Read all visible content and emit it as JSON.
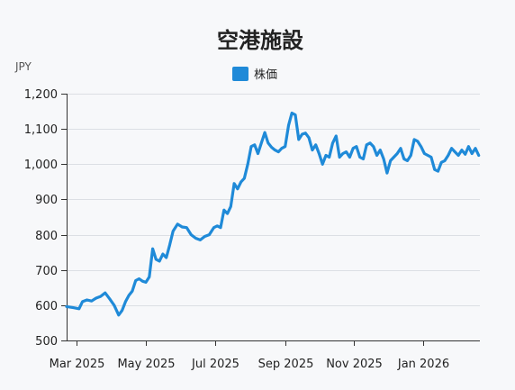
{
  "chart_data": {
    "type": "line",
    "title": "空港施設",
    "y_unit": "JPY",
    "ylim": [
      500,
      1200
    ],
    "y_ticks": [
      "500",
      "600",
      "700",
      "800",
      "900",
      "1,000",
      "1,100",
      "1,200"
    ],
    "x_tick_labels": [
      "Mar 2025",
      "May 2025",
      "Jul 2025",
      "Sep 2025",
      "Nov 2025",
      "Jan 2026"
    ],
    "x_tick_dates": [
      "2025-03-01",
      "2025-05-01",
      "2025-07-01",
      "2025-09-01",
      "2025-11-01",
      "2026-01-01"
    ],
    "x_range": [
      "2025-02-20",
      "2026-02-20"
    ],
    "grid": true,
    "legend_position": "top-center",
    "series": [
      {
        "name": "株価",
        "color": "#1f8ad8",
        "x": [
          "2025-02-20",
          "2025-02-26",
          "2025-03-03",
          "2025-03-06",
          "2025-03-10",
          "2025-03-14",
          "2025-03-18",
          "2025-03-22",
          "2025-03-26",
          "2025-03-30",
          "2025-04-03",
          "2025-04-07",
          "2025-04-10",
          "2025-04-13",
          "2025-04-16",
          "2025-04-19",
          "2025-04-22",
          "2025-04-25",
          "2025-04-28",
          "2025-05-01",
          "2025-05-04",
          "2025-05-07",
          "2025-05-10",
          "2025-05-13",
          "2025-05-16",
          "2025-05-19",
          "2025-05-22",
          "2025-05-25",
          "2025-05-29",
          "2025-06-02",
          "2025-06-06",
          "2025-06-10",
          "2025-06-14",
          "2025-06-18",
          "2025-06-22",
          "2025-06-26",
          "2025-06-30",
          "2025-07-03",
          "2025-07-06",
          "2025-07-09",
          "2025-07-12",
          "2025-07-15",
          "2025-07-18",
          "2025-07-21",
          "2025-07-24",
          "2025-07-27",
          "2025-07-30",
          "2025-08-02",
          "2025-08-05",
          "2025-08-08",
          "2025-08-11",
          "2025-08-14",
          "2025-08-17",
          "2025-08-20",
          "2025-08-23",
          "2025-08-26",
          "2025-08-29",
          "2025-09-01",
          "2025-09-04",
          "2025-09-07",
          "2025-09-10",
          "2025-09-13",
          "2025-09-16",
          "2025-09-19",
          "2025-09-22",
          "2025-09-25",
          "2025-09-28",
          "2025-10-01",
          "2025-10-04",
          "2025-10-07",
          "2025-10-10",
          "2025-10-13",
          "2025-10-16",
          "2025-10-19",
          "2025-10-22",
          "2025-10-25",
          "2025-10-28",
          "2025-10-31",
          "2025-11-03",
          "2025-11-06",
          "2025-11-09",
          "2025-11-12",
          "2025-11-15",
          "2025-11-18",
          "2025-11-21",
          "2025-11-24",
          "2025-11-27",
          "2025-11-30",
          "2025-12-03",
          "2025-12-06",
          "2025-12-09",
          "2025-12-12",
          "2025-12-15",
          "2025-12-18",
          "2025-12-21",
          "2025-12-24",
          "2025-12-27",
          "2025-12-30",
          "2026-01-02",
          "2026-01-05",
          "2026-01-08",
          "2026-01-11",
          "2026-01-14",
          "2026-01-17",
          "2026-01-20",
          "2026-01-23",
          "2026-01-26",
          "2026-01-29",
          "2026-02-01",
          "2026-02-04",
          "2026-02-07",
          "2026-02-10",
          "2026-02-13",
          "2026-02-16",
          "2026-02-19"
        ],
        "values": [
          596,
          593,
          590,
          610,
          615,
          612,
          620,
          625,
          635,
          618,
          600,
          572,
          585,
          610,
          628,
          640,
          670,
          675,
          668,
          665,
          680,
          760,
          730,
          725,
          745,
          735,
          770,
          810,
          830,
          822,
          820,
          800,
          790,
          785,
          795,
          800,
          820,
          825,
          820,
          870,
          860,
          880,
          945,
          930,
          950,
          960,
          1000,
          1050,
          1055,
          1030,
          1060,
          1090,
          1060,
          1048,
          1040,
          1035,
          1045,
          1050,
          1110,
          1145,
          1140,
          1070,
          1085,
          1088,
          1075,
          1040,
          1055,
          1030,
          1000,
          1025,
          1020,
          1060,
          1080,
          1020,
          1030,
          1035,
          1020,
          1045,
          1050,
          1020,
          1015,
          1055,
          1060,
          1050,
          1025,
          1040,
          1015,
          975,
          1010,
          1020,
          1030,
          1045,
          1015,
          1010,
          1025,
          1070,
          1065,
          1050,
          1030,
          1025,
          1020,
          985,
          980,
          1005,
          1010,
          1025,
          1045,
          1035,
          1025,
          1040,
          1028,
          1050,
          1030,
          1045,
          1025
        ]
      }
    ]
  }
}
